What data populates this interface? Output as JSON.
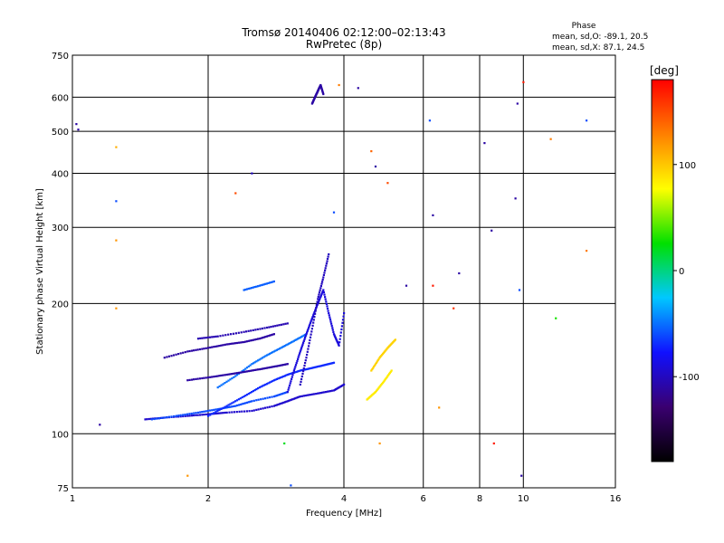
{
  "chart_data": {
    "type": "scatter",
    "title": "Tromsø 20140406 02:12:00–02:13:43",
    "subtitle": "RwPretec (8p)",
    "xlabel": "Frequency [MHz]",
    "ylabel": "Stationary phase Virtual Height [km]",
    "x_scale": "log",
    "y_scale": "log",
    "xlim": [
      1,
      16
    ],
    "ylim": [
      75,
      750
    ],
    "x_ticks": [
      1,
      2,
      4,
      6,
      8,
      10,
      16
    ],
    "y_ticks": [
      75,
      100,
      200,
      300,
      400,
      500,
      600,
      750
    ],
    "grid": true,
    "stats": {
      "title": "Phase",
      "o_line": "mean, sd,O:  -89.1, 20.5",
      "x_line": "mean, sd,X:  87.1, 24.5"
    },
    "colorbar": {
      "label": "[deg]",
      "range": [
        -180,
        180
      ],
      "ticks": [
        100,
        0,
        -100
      ],
      "colors": [
        "#000000",
        "#3a0070",
        "#1010ff",
        "#00c8ff",
        "#00e000",
        "#ffff00",
        "#ff8000",
        "#ff0000"
      ]
    },
    "traces": [
      {
        "name": "",
        "x": [
          1.45,
          1.6,
          1.8,
          2.0,
          2.2,
          2.5,
          2.8,
          3.0,
          3.2,
          3.5,
          3.8,
          4.0
        ],
        "y": [
          108,
          109,
          110,
          111,
          112,
          113,
          116,
          119,
          122,
          124,
          126,
          130
        ],
        "phase": -95
      },
      {
        "name": "",
        "x": [
          1.5,
          1.7,
          1.9,
          2.1,
          2.3,
          2.5,
          2.8,
          3.0
        ],
        "y": [
          108,
          110,
          112,
          114,
          116,
          119,
          122,
          125
        ],
        "phase": -60
      },
      {
        "name": "",
        "x": [
          2.0,
          2.2,
          2.4,
          2.6,
          2.8,
          3.0,
          3.2,
          3.4,
          3.6,
          3.8
        ],
        "y": [
          110,
          116,
          122,
          128,
          133,
          137,
          140,
          142,
          144,
          146
        ],
        "phase": -70
      },
      {
        "name": "",
        "x": [
          2.1,
          2.3,
          2.5,
          2.7,
          2.9,
          3.1,
          3.3
        ],
        "y": [
          128,
          136,
          145,
          152,
          158,
          164,
          170
        ],
        "phase": -50
      },
      {
        "name": "",
        "x": [
          1.6,
          1.8,
          2.0,
          2.2,
          2.4,
          2.6,
          2.8
        ],
        "y": [
          150,
          155,
          158,
          161,
          163,
          166,
          170
        ],
        "phase": -110
      },
      {
        "name": "",
        "x": [
          1.8,
          2.0,
          2.2,
          2.4,
          2.6,
          2.8,
          3.0
        ],
        "y": [
          133,
          135,
          137,
          139,
          141,
          143,
          145
        ],
        "phase": -110
      },
      {
        "name": "",
        "x": [
          1.9,
          2.1,
          2.4,
          2.7,
          3.0
        ],
        "y": [
          166,
          168,
          172,
          176,
          180
        ],
        "phase": -105
      },
      {
        "name": "",
        "x": [
          3.0,
          3.1,
          3.2,
          3.3,
          3.4,
          3.5,
          3.6,
          3.7,
          3.8,
          3.9,
          4.0
        ],
        "y": [
          125,
          140,
          155,
          170,
          185,
          200,
          215,
          190,
          170,
          160,
          190
        ],
        "phase": -90
      },
      {
        "name": "",
        "x": [
          3.2,
          3.3,
          3.4,
          3.5,
          3.6,
          3.7
        ],
        "y": [
          130,
          150,
          175,
          205,
          230,
          260
        ],
        "phase": -100
      },
      {
        "name": "",
        "x": [
          3.4,
          3.45,
          3.5,
          3.55,
          3.6
        ],
        "y": [
          580,
          600,
          620,
          640,
          610
        ],
        "phase": -110
      },
      {
        "name": "",
        "x": [
          2.4,
          2.6,
          2.8
        ],
        "y": [
          215,
          220,
          225
        ],
        "phase": -55
      },
      {
        "name": "",
        "x": [
          4.5,
          4.7,
          4.9,
          5.1
        ],
        "y": [
          120,
          125,
          132,
          140
        ],
        "phase": 85
      },
      {
        "name": "",
        "x": [
          4.6,
          4.8,
          5.0,
          5.2
        ],
        "y": [
          140,
          150,
          158,
          165
        ],
        "phase": 95
      }
    ],
    "scatter_points": [
      {
        "x": 1.02,
        "y": 520,
        "phase": -110
      },
      {
        "x": 1.03,
        "y": 505,
        "phase": -110
      },
      {
        "x": 1.25,
        "y": 460,
        "phase": 110
      },
      {
        "x": 1.25,
        "y": 280,
        "phase": 120
      },
      {
        "x": 1.25,
        "y": 345,
        "phase": -60
      },
      {
        "x": 1.25,
        "y": 195,
        "phase": 120
      },
      {
        "x": 1.15,
        "y": 105,
        "phase": -110
      },
      {
        "x": 1.8,
        "y": 80,
        "phase": 120
      },
      {
        "x": 2.3,
        "y": 360,
        "phase": 150
      },
      {
        "x": 2.5,
        "y": 400,
        "phase": -100
      },
      {
        "x": 2.95,
        "y": 95,
        "phase": 20
      },
      {
        "x": 3.05,
        "y": 76,
        "phase": -60
      },
      {
        "x": 3.8,
        "y": 325,
        "phase": -60
      },
      {
        "x": 3.9,
        "y": 640,
        "phase": 130
      },
      {
        "x": 4.3,
        "y": 630,
        "phase": -110
      },
      {
        "x": 4.6,
        "y": 450,
        "phase": 140
      },
      {
        "x": 4.7,
        "y": 415,
        "phase": -110
      },
      {
        "x": 4.8,
        "y": 95,
        "phase": 120
      },
      {
        "x": 5.0,
        "y": 380,
        "phase": 150
      },
      {
        "x": 5.5,
        "y": 220,
        "phase": -110
      },
      {
        "x": 6.2,
        "y": 530,
        "phase": -60
      },
      {
        "x": 6.3,
        "y": 220,
        "phase": 170
      },
      {
        "x": 6.3,
        "y": 320,
        "phase": -110
      },
      {
        "x": 6.5,
        "y": 115,
        "phase": 120
      },
      {
        "x": 7.2,
        "y": 235,
        "phase": -110
      },
      {
        "x": 7.0,
        "y": 195,
        "phase": 160
      },
      {
        "x": 8.2,
        "y": 470,
        "phase": -110
      },
      {
        "x": 8.5,
        "y": 295,
        "phase": -110
      },
      {
        "x": 8.6,
        "y": 95,
        "phase": 170
      },
      {
        "x": 9.6,
        "y": 350,
        "phase": -110
      },
      {
        "x": 9.7,
        "y": 580,
        "phase": -110
      },
      {
        "x": 9.8,
        "y": 215,
        "phase": -60
      },
      {
        "x": 9.9,
        "y": 80,
        "phase": -110
      },
      {
        "x": 10.0,
        "y": 650,
        "phase": 170
      },
      {
        "x": 11.5,
        "y": 480,
        "phase": 130
      },
      {
        "x": 11.8,
        "y": 185,
        "phase": 30
      },
      {
        "x": 13.8,
        "y": 530,
        "phase": -60
      },
      {
        "x": 13.8,
        "y": 265,
        "phase": 130
      }
    ]
  }
}
